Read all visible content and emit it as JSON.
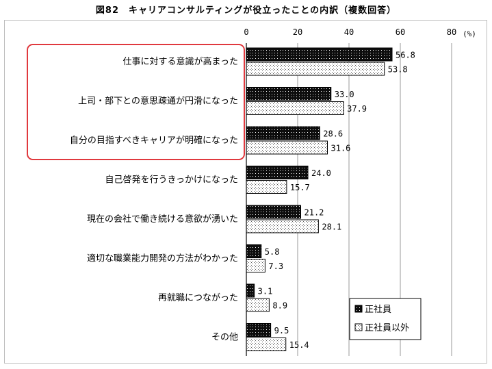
{
  "figure_title": "図82　キャリアコンサルティングが役立ったことの内訳（複数回答）",
  "colors": {
    "highlight": "#e0393e",
    "bar_dark": "#0d0d0d",
    "bar_light": "#ffffff",
    "grid": "#9a9a9a"
  },
  "chart_data": {
    "type": "bar",
    "orientation": "horizontal",
    "unit_label": "(%)",
    "xlim": [
      0,
      80
    ],
    "xticks": [
      "0",
      "20",
      "40",
      "60",
      "80"
    ],
    "grid": true,
    "legend_position": "bottom-right",
    "categories": [
      "仕事に対する意識が高まった",
      "上司・部下との意思疎通が円滑になった",
      "自分の目指すべきキャリアが明確になった",
      "自己啓発を行うきっかけになった",
      "現在の会社で働き続ける意欲が湧いた",
      "適切な職業能力開発の方法がわかった",
      "再就職につながった",
      "その他"
    ],
    "series": [
      {
        "name": "正社員",
        "values": [
          56.8,
          33.0,
          28.6,
          24.0,
          21.2,
          5.8,
          3.1,
          9.5
        ],
        "labels": [
          "56.8",
          "33.0",
          "28.6",
          "24.0",
          "21.2",
          "5.8",
          "3.1",
          "9.5"
        ]
      },
      {
        "name": "正社員以外",
        "values": [
          53.8,
          37.9,
          31.6,
          15.7,
          28.1,
          7.3,
          8.9,
          15.4
        ],
        "labels": [
          "53.8",
          "37.9",
          "31.6",
          "15.7",
          "28.1",
          "7.3",
          "8.9",
          "15.4"
        ]
      }
    ],
    "highlighted_categories": [
      0,
      1,
      2
    ]
  }
}
